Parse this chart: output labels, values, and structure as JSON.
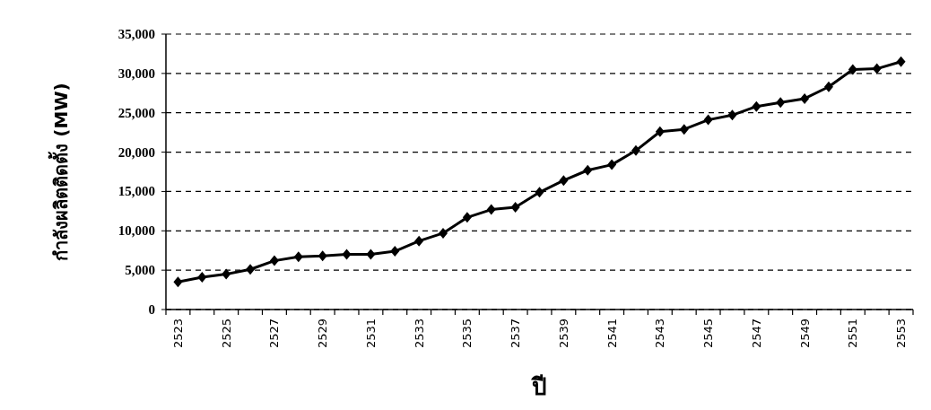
{
  "chart_data": {
    "type": "line",
    "xlabel": "ปี",
    "ylabel": "กำลังผลิตติดตั้ง (MW)",
    "categories": [
      "2523",
      null,
      "2525",
      null,
      "2527",
      null,
      "2529",
      null,
      "2531",
      null,
      "2533",
      null,
      "2535",
      null,
      "2537",
      null,
      "2539",
      null,
      "2541",
      null,
      "2543",
      null,
      "2545",
      null,
      "2547",
      null,
      "2549",
      null,
      "2551",
      null,
      "2553"
    ],
    "series": [
      {
        "color": "#000000",
        "values": [
          3500,
          4100,
          4500,
          5100,
          6200,
          6700,
          6800,
          7000,
          7000,
          7400,
          8700,
          9700,
          11700,
          12700,
          13000,
          14900,
          16400,
          17700,
          18400,
          20200,
          22600,
          22900,
          24100,
          24700,
          25800,
          26300,
          26800,
          28300,
          30500,
          30600,
          31500
        ]
      }
    ],
    "ylim": [
      0,
      35000
    ],
    "yticks": [
      0,
      {
        "value": 5000,
        "label": "5,000"
      },
      {
        "value": 10000,
        "label": "10,000"
      },
      {
        "value": 15000,
        "label": "15,000"
      },
      {
        "value": 20000,
        "label": "20,000"
      },
      {
        "value": 25000,
        "label": "25,000"
      },
      {
        "value": 30000,
        "label": "30,000"
      },
      {
        "value": 35000,
        "label": "35,000"
      }
    ],
    "grid": "y",
    "marker": "diamond",
    "line_style": "solid"
  }
}
